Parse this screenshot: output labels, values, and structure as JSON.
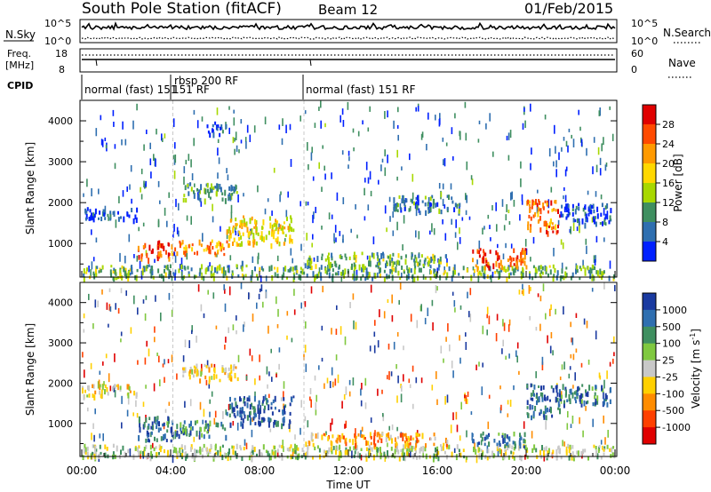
{
  "header": {
    "title": "South Pole Station (fitACF)",
    "beam": "Beam 12",
    "date": "01/Feb/2015"
  },
  "noise_panel": {
    "left_label": "N.Sky",
    "right_label": "N.Search",
    "left_ticks": [
      "10^5",
      "10^0"
    ],
    "right_ticks": [
      "10^5",
      "10^0"
    ]
  },
  "freq_panel": {
    "left_label_1": "Freq.",
    "left_label_2": "[MHz]",
    "left_ticks": [
      "18",
      "8"
    ],
    "right_ticks": [
      "60",
      "0"
    ],
    "right_label": "Nave"
  },
  "cpid": {
    "label": "CPID",
    "segments": [
      {
        "label": "normal (fast) 151",
        "start": 0.0,
        "end": 4.1
      },
      {
        "label": "rbsp 200 RF",
        "start": 4.1,
        "end": 10.0
      },
      {
        "label": "normal (fast) 151 RF",
        "start": 10.0,
        "end": 24.0
      }
    ],
    "overlap_label": "151 RF"
  },
  "power_colorbar": {
    "label": "Power [dB]",
    "ticks": [
      "28",
      "24",
      "20",
      "16",
      "12",
      "8",
      "4"
    ],
    "colors": [
      "#e00000",
      "#ff4a00",
      "#ff9a00",
      "#ffd800",
      "#a8d800",
      "#3f8f60",
      "#2f6fb0",
      "#0020ff"
    ]
  },
  "velocity_colorbar": {
    "label": "Velocity [m s",
    "label_sup": "-1",
    "label_end": "]",
    "ticks": [
      "1000",
      "500",
      "100",
      "25",
      "-25",
      "-100",
      "-500",
      "-1000"
    ],
    "colors": [
      "#1a3aa0",
      "#2f6fb0",
      "#3f8f60",
      "#7fc83f",
      "#c8c8c8",
      "#ffd000",
      "#ff8c00",
      "#ff4000",
      "#e00000"
    ]
  },
  "chart_data": [
    {
      "type": "heatmap",
      "name": "power",
      "ylabel": "Slant Range [km]",
      "ylim": [
        180,
        4500
      ],
      "yticks": [
        1000,
        2000,
        3000,
        4000
      ],
      "xlim": [
        0,
        24
      ],
      "features": [
        {
          "t0": 0.0,
          "t1": 24.0,
          "r0": 180,
          "r1": 500,
          "level": 0.35
        },
        {
          "t0": 0.0,
          "t1": 2.5,
          "r0": 1600,
          "r1": 1900,
          "level": 0.15
        },
        {
          "t0": 2.5,
          "t1": 4.0,
          "r0": 650,
          "r1": 1100,
          "level": 0.85
        },
        {
          "t0": 4.0,
          "t1": 6.5,
          "r0": 750,
          "r1": 1100,
          "level": 0.7
        },
        {
          "t0": 6.5,
          "t1": 9.5,
          "r0": 1000,
          "r1": 1700,
          "level": 0.55
        },
        {
          "t0": 4.5,
          "t1": 7.0,
          "r0": 2100,
          "r1": 2500,
          "level": 0.3
        },
        {
          "t0": 5.5,
          "t1": 6.5,
          "r0": 3700,
          "r1": 4000,
          "level": 0.1
        },
        {
          "t0": 10.0,
          "t1": 16.5,
          "r0": 500,
          "r1": 800,
          "level": 0.35
        },
        {
          "t0": 14.0,
          "t1": 17.0,
          "r0": 1800,
          "r1": 2200,
          "level": 0.25
        },
        {
          "t0": 17.5,
          "t1": 20.0,
          "r0": 450,
          "r1": 900,
          "level": 0.8
        },
        {
          "t0": 20.0,
          "t1": 21.5,
          "r0": 1300,
          "r1": 2100,
          "level": 0.75
        },
        {
          "t0": 21.5,
          "t1": 23.8,
          "r0": 1500,
          "r1": 2000,
          "level": 0.15
        }
      ]
    },
    {
      "type": "heatmap",
      "name": "velocity",
      "ylabel": "Slant Range [km]",
      "xlabel": "Time UT",
      "ylim": [
        180,
        4500
      ],
      "yticks": [
        1000,
        2000,
        3000,
        4000
      ],
      "xlim": [
        0,
        24
      ],
      "xticks": [
        "00:00",
        "04:00",
        "08:00",
        "12:00",
        "16:00",
        "20:00",
        "00:00"
      ],
      "features": [
        {
          "t0": 0.0,
          "t1": 24.0,
          "r0": 180,
          "r1": 500,
          "level": 0.55
        },
        {
          "t0": 0.0,
          "t1": 2.5,
          "r0": 1700,
          "r1": 2000,
          "level": 0.45
        },
        {
          "t0": 2.5,
          "t1": 4.0,
          "r0": 600,
          "r1": 1200,
          "level": 0.8
        },
        {
          "t0": 4.0,
          "t1": 6.5,
          "r0": 700,
          "r1": 1100,
          "level": 0.78
        },
        {
          "t0": 6.5,
          "t1": 9.5,
          "r0": 1000,
          "r1": 1700,
          "level": 0.88
        },
        {
          "t0": 4.5,
          "t1": 7.0,
          "r0": 2100,
          "r1": 2500,
          "level": 0.45
        },
        {
          "t0": 10.0,
          "t1": 16.5,
          "r0": 500,
          "r1": 800,
          "level": 0.3
        },
        {
          "t0": 17.5,
          "t1": 20.0,
          "r0": 450,
          "r1": 800,
          "level": 0.8
        },
        {
          "t0": 20.0,
          "t1": 21.5,
          "r0": 1200,
          "r1": 2000,
          "level": 0.85
        },
        {
          "t0": 21.5,
          "t1": 23.8,
          "r0": 1500,
          "r1": 2000,
          "level": 0.8
        }
      ]
    }
  ]
}
